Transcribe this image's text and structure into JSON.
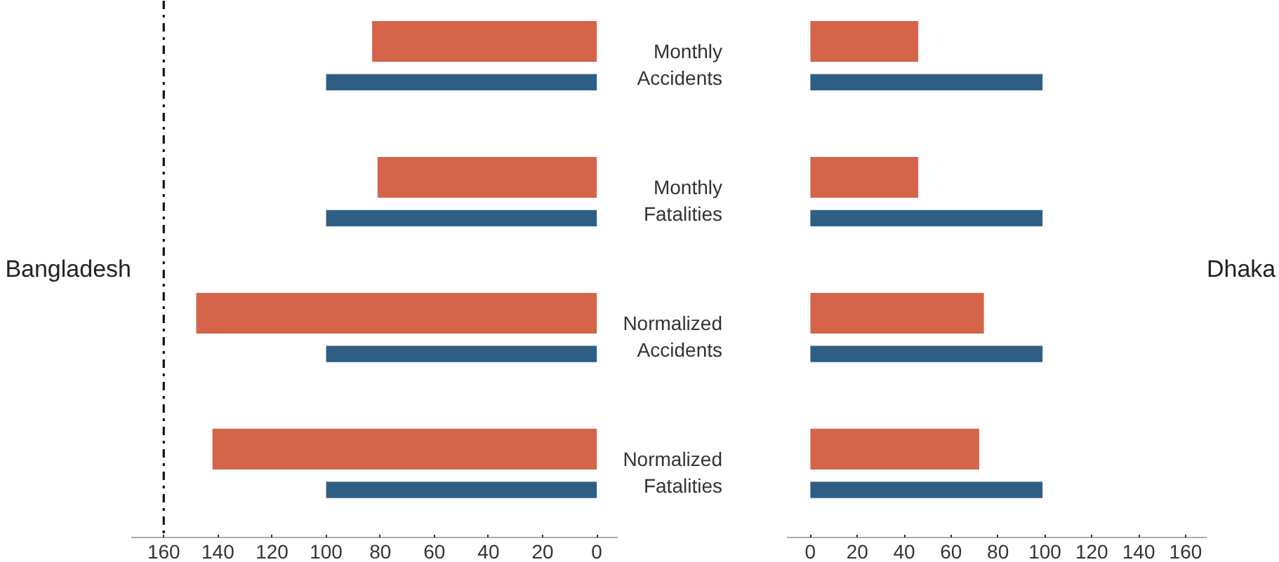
{
  "chart_data": [
    {
      "type": "bar",
      "orientation": "horizontal",
      "ylabel": "Bangladesh",
      "tick_labels": "x",
      "categories": [
        null,
        null,
        null,
        null
      ],
      "series": [
        {
          "color": "#d4654b",
          "values": [
            83,
            81,
            148,
            142
          ]
        },
        {
          "color": "#2f5e85",
          "values": [
            100,
            100,
            100,
            100
          ]
        }
      ],
      "xlim": [
        172,
        -8
      ],
      "xticks": [
        160,
        140,
        120,
        100,
        80,
        60,
        40,
        20,
        0
      ],
      "grid": false,
      "ref_lines": [
        {
          "axis": "x",
          "value": 160,
          "color": "#111111",
          "line_style": "dashdot"
        }
      ]
    },
    {
      "type": "bar",
      "orientation": "horizontal",
      "ylabel": "Dhaka",
      "categories": [
        "Monthly Accidents",
        "Monthly Fatalities",
        "Normalized Accidents",
        "Normalized Fatalities"
      ],
      "series": [
        {
          "color": "#d4654b",
          "values": [
            46,
            46,
            74,
            72
          ]
        },
        {
          "color": "#2f5e85",
          "values": [
            99,
            99,
            99,
            99
          ]
        }
      ],
      "xlim": [
        -10,
        169
      ],
      "xticks": [
        0,
        20,
        40,
        60,
        80,
        100,
        120,
        140,
        160
      ],
      "grid": false
    }
  ]
}
